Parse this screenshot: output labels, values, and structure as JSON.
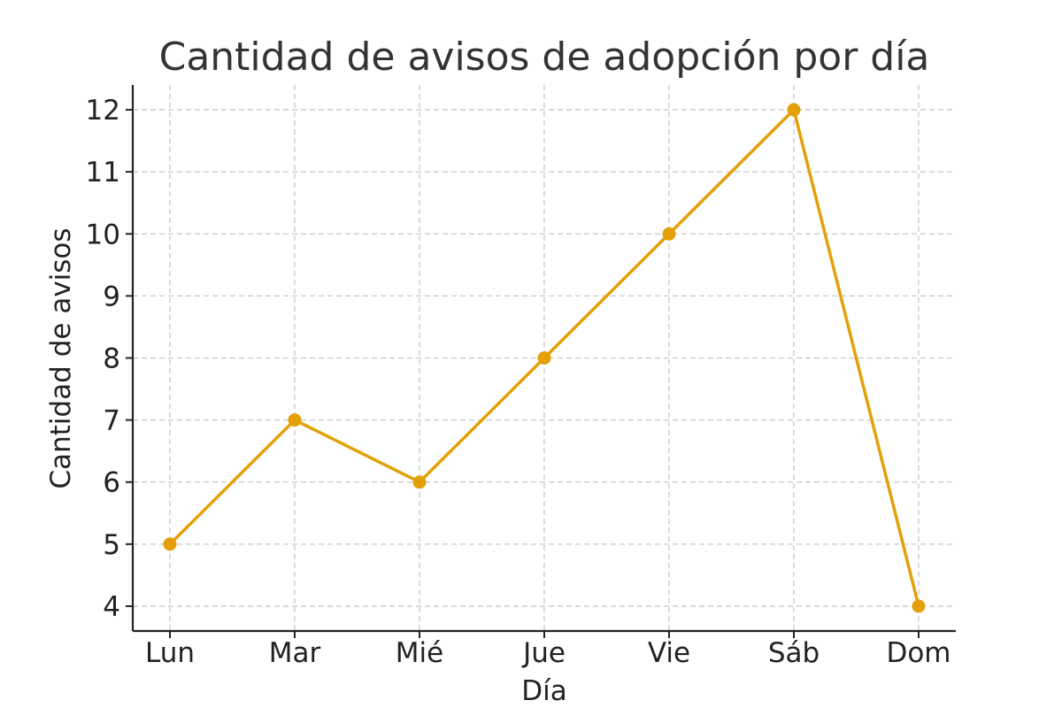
{
  "chart_data": {
    "type": "line",
    "title": "Cantidad de avisos de adopción por día",
    "xlabel": "Día",
    "ylabel": "Cantidad de avisos",
    "categories": [
      "Lun",
      "Mar",
      "Mié",
      "Jue",
      "Vie",
      "Sáb",
      "Dom"
    ],
    "series": [
      {
        "values": [
          5,
          7,
          6,
          8,
          10,
          12,
          4
        ],
        "color": "#e3a008",
        "marker": "circle"
      }
    ],
    "yticks": [
      4,
      5,
      6,
      7,
      8,
      9,
      10,
      11,
      12
    ],
    "ylim": [
      3.6,
      12.4
    ],
    "grid": true
  }
}
